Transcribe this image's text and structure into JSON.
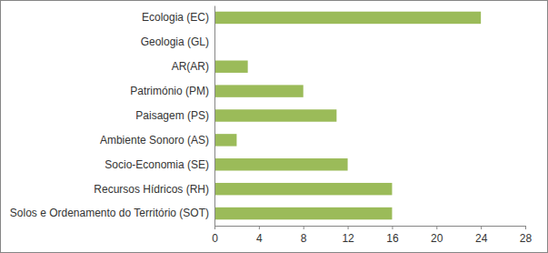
{
  "chart_data": {
    "type": "bar",
    "orientation": "horizontal",
    "categories": [
      "Ecologia (EC)",
      "Geologia (GL)",
      "AR(AR)",
      "Património (PM)",
      "Paisagem (PS)",
      "Ambiente Sonoro (AS)",
      "Socio-Economia (SE)",
      "Recursos Hídricos (RH)",
      "Solos e Ordenamento do Território (SOT)"
    ],
    "values": [
      24,
      0,
      3,
      8,
      11,
      2,
      12,
      16,
      16
    ],
    "color": "#9bbb59",
    "xlim": [
      0,
      28
    ],
    "xticks": [
      0,
      4,
      8,
      12,
      16,
      20,
      24,
      28
    ],
    "grid": false
  }
}
